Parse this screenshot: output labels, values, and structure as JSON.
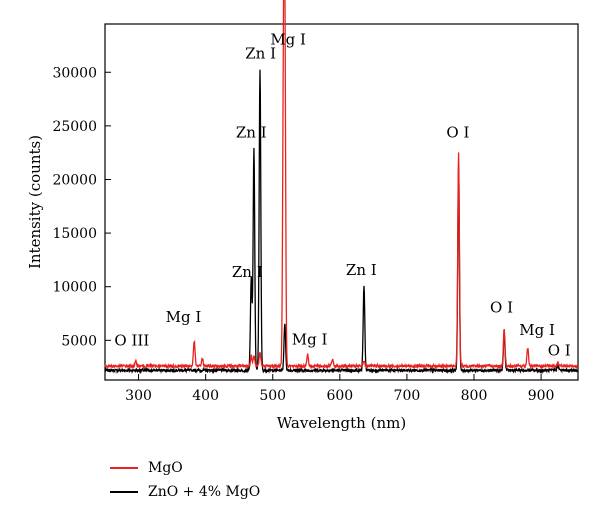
{
  "chart_data": {
    "type": "line",
    "xlabel": "Wavelength (nm)",
    "ylabel": "Intensity (counts)",
    "xlim": [
      250,
      955
    ],
    "ylim": [
      1300,
      34500
    ],
    "xticks": [
      300,
      400,
      500,
      600,
      700,
      800,
      900
    ],
    "yticks": [
      5000,
      10000,
      15000,
      20000,
      25000,
      30000
    ],
    "grid": false,
    "legend_position": "bottom-left",
    "baseline": {
      "MgO": 2600,
      "ZnO + 4% MgO": 2200
    },
    "series": [
      {
        "name": "MgO",
        "color": "#e8231f",
        "peaks": [
          {
            "x": 296,
            "y": 3000
          },
          {
            "x": 383,
            "y": 4900
          },
          {
            "x": 395,
            "y": 3300
          },
          {
            "x": 468,
            "y": 3500
          },
          {
            "x": 472,
            "y": 3600
          },
          {
            "x": 481,
            "y": 3900
          },
          {
            "x": 516,
            "y": 28000
          },
          {
            "x": 518,
            "y": 33800
          },
          {
            "x": 552,
            "y": 3700
          },
          {
            "x": 589,
            "y": 3200
          },
          {
            "x": 636,
            "y": 3100
          },
          {
            "x": 777,
            "y": 22500
          },
          {
            "x": 845,
            "y": 6100
          },
          {
            "x": 880,
            "y": 4300
          },
          {
            "x": 925,
            "y": 3000
          }
        ]
      },
      {
        "name": "ZnO + 4% MgO",
        "color": "#000000",
        "peaks": [
          {
            "x": 468,
            "y": 10800
          },
          {
            "x": 472,
            "y": 22800
          },
          {
            "x": 481,
            "y": 30300
          },
          {
            "x": 518,
            "y": 6600
          },
          {
            "x": 636,
            "y": 10000
          },
          {
            "x": 777,
            "y": 21000
          },
          {
            "x": 845,
            "y": 5600
          },
          {
            "x": 925,
            "y": 2700
          }
        ]
      }
    ],
    "annotations": [
      {
        "text": "O III",
        "x": 290,
        "y": 4500
      },
      {
        "text": "Mg I",
        "x": 367,
        "y": 6700
      },
      {
        "text": "Zn I",
        "x": 462,
        "y": 10900
      },
      {
        "text": "Zn I",
        "x": 468,
        "y": 23900
      },
      {
        "text": "Zn I",
        "x": 482,
        "y": 31300
      },
      {
        "text": "Mg I",
        "x": 523,
        "y": 32600
      },
      {
        "text": "Mg I",
        "x": 555,
        "y": 4600
      },
      {
        "text": "Zn I",
        "x": 632,
        "y": 11100
      },
      {
        "text": "O I",
        "x": 776,
        "y": 23900
      },
      {
        "text": "O I",
        "x": 841,
        "y": 7600
      },
      {
        "text": "Mg I",
        "x": 894,
        "y": 5500
      },
      {
        "text": "O I",
        "x": 927,
        "y": 3600
      }
    ]
  }
}
